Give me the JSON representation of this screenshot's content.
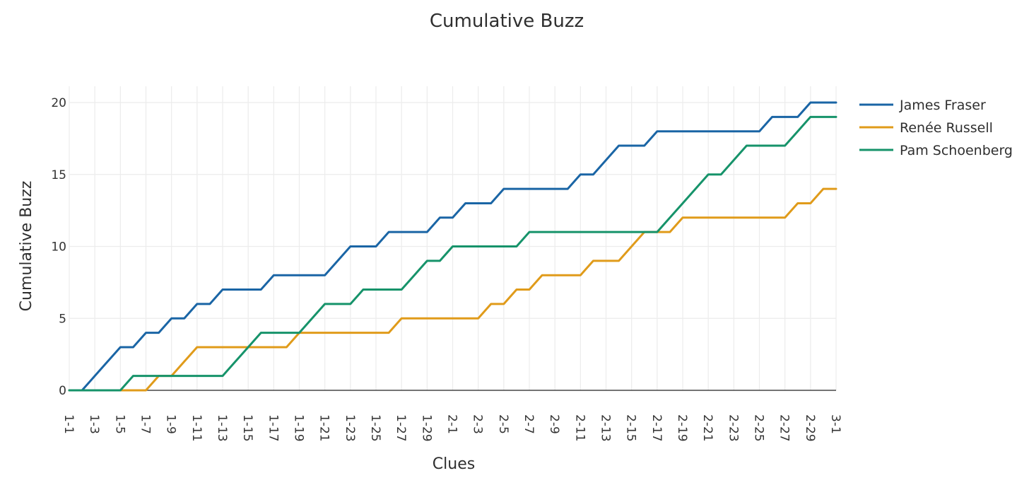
{
  "chart_data": {
    "type": "line",
    "title": "Cumulative Buzz",
    "xlabel": "Clues",
    "ylabel": "Cumulative Buzz",
    "categories": [
      "1-1",
      "1-2",
      "1-3",
      "1-4",
      "1-5",
      "1-6",
      "1-7",
      "1-8",
      "1-9",
      "1-10",
      "1-11",
      "1-12",
      "1-13",
      "1-14",
      "1-15",
      "1-16",
      "1-17",
      "1-18",
      "1-19",
      "1-20",
      "1-21",
      "1-22",
      "1-23",
      "1-24",
      "1-25",
      "1-26",
      "1-27",
      "1-28",
      "1-29",
      "1-30",
      "2-1",
      "2-2",
      "2-3",
      "2-4",
      "2-5",
      "2-6",
      "2-7",
      "2-8",
      "2-9",
      "2-10",
      "2-11",
      "2-12",
      "2-13",
      "2-14",
      "2-15",
      "2-16",
      "2-17",
      "2-18",
      "2-19",
      "2-20",
      "2-21",
      "2-22",
      "2-23",
      "2-24",
      "2-25",
      "2-26",
      "2-27",
      "2-28",
      "2-29",
      "2-30",
      "3-1"
    ],
    "tick_labels": [
      "1-1",
      "1-3",
      "1-5",
      "1-7",
      "1-9",
      "1-11",
      "1-13",
      "1-15",
      "1-17",
      "1-19",
      "1-21",
      "1-23",
      "1-25",
      "1-27",
      "1-29",
      "2-1",
      "2-3",
      "2-5",
      "2-7",
      "2-9",
      "2-11",
      "2-13",
      "2-15",
      "2-17",
      "2-19",
      "2-21",
      "2-23",
      "2-25",
      "2-27",
      "2-29",
      "3-1"
    ],
    "ylim": [
      0,
      21
    ],
    "yticks": [
      0,
      5,
      10,
      15,
      20
    ],
    "grid": true,
    "legend_position": "top-right",
    "series": [
      {
        "name": "James Fraser",
        "color": "#1a65a5",
        "values": [
          0,
          0,
          1,
          2,
          3,
          3,
          4,
          4,
          5,
          5,
          6,
          6,
          7,
          7,
          7,
          7,
          8,
          8,
          8,
          8,
          8,
          9,
          10,
          10,
          10,
          11,
          11,
          11,
          11,
          12,
          12,
          13,
          13,
          13,
          14,
          14,
          14,
          14,
          14,
          14,
          15,
          15,
          16,
          17,
          17,
          17,
          18,
          18,
          18,
          18,
          18,
          18,
          18,
          18,
          18,
          19,
          19,
          19,
          20,
          20,
          20
        ]
      },
      {
        "name": "Renée Russell",
        "color": "#e09b1a",
        "values": [
          0,
          0,
          0,
          0,
          0,
          0,
          0,
          1,
          1,
          2,
          3,
          3,
          3,
          3,
          3,
          3,
          3,
          3,
          4,
          4,
          4,
          4,
          4,
          4,
          4,
          4,
          5,
          5,
          5,
          5,
          5,
          5,
          5,
          6,
          6,
          7,
          7,
          8,
          8,
          8,
          8,
          9,
          9,
          9,
          10,
          11,
          11,
          11,
          12,
          12,
          12,
          12,
          12,
          12,
          12,
          12,
          12,
          13,
          13,
          14,
          14
        ]
      },
      {
        "name": "Pam Schoenberg",
        "color": "#16936a",
        "values": [
          0,
          0,
          0,
          0,
          0,
          1,
          1,
          1,
          1,
          1,
          1,
          1,
          1,
          2,
          3,
          4,
          4,
          4,
          4,
          5,
          6,
          6,
          6,
          7,
          7,
          7,
          7,
          8,
          9,
          9,
          10,
          10,
          10,
          10,
          10,
          10,
          11,
          11,
          11,
          11,
          11,
          11,
          11,
          11,
          11,
          11,
          11,
          12,
          13,
          14,
          15,
          15,
          16,
          17,
          17,
          17,
          17,
          18,
          19,
          19,
          19
        ]
      }
    ]
  }
}
